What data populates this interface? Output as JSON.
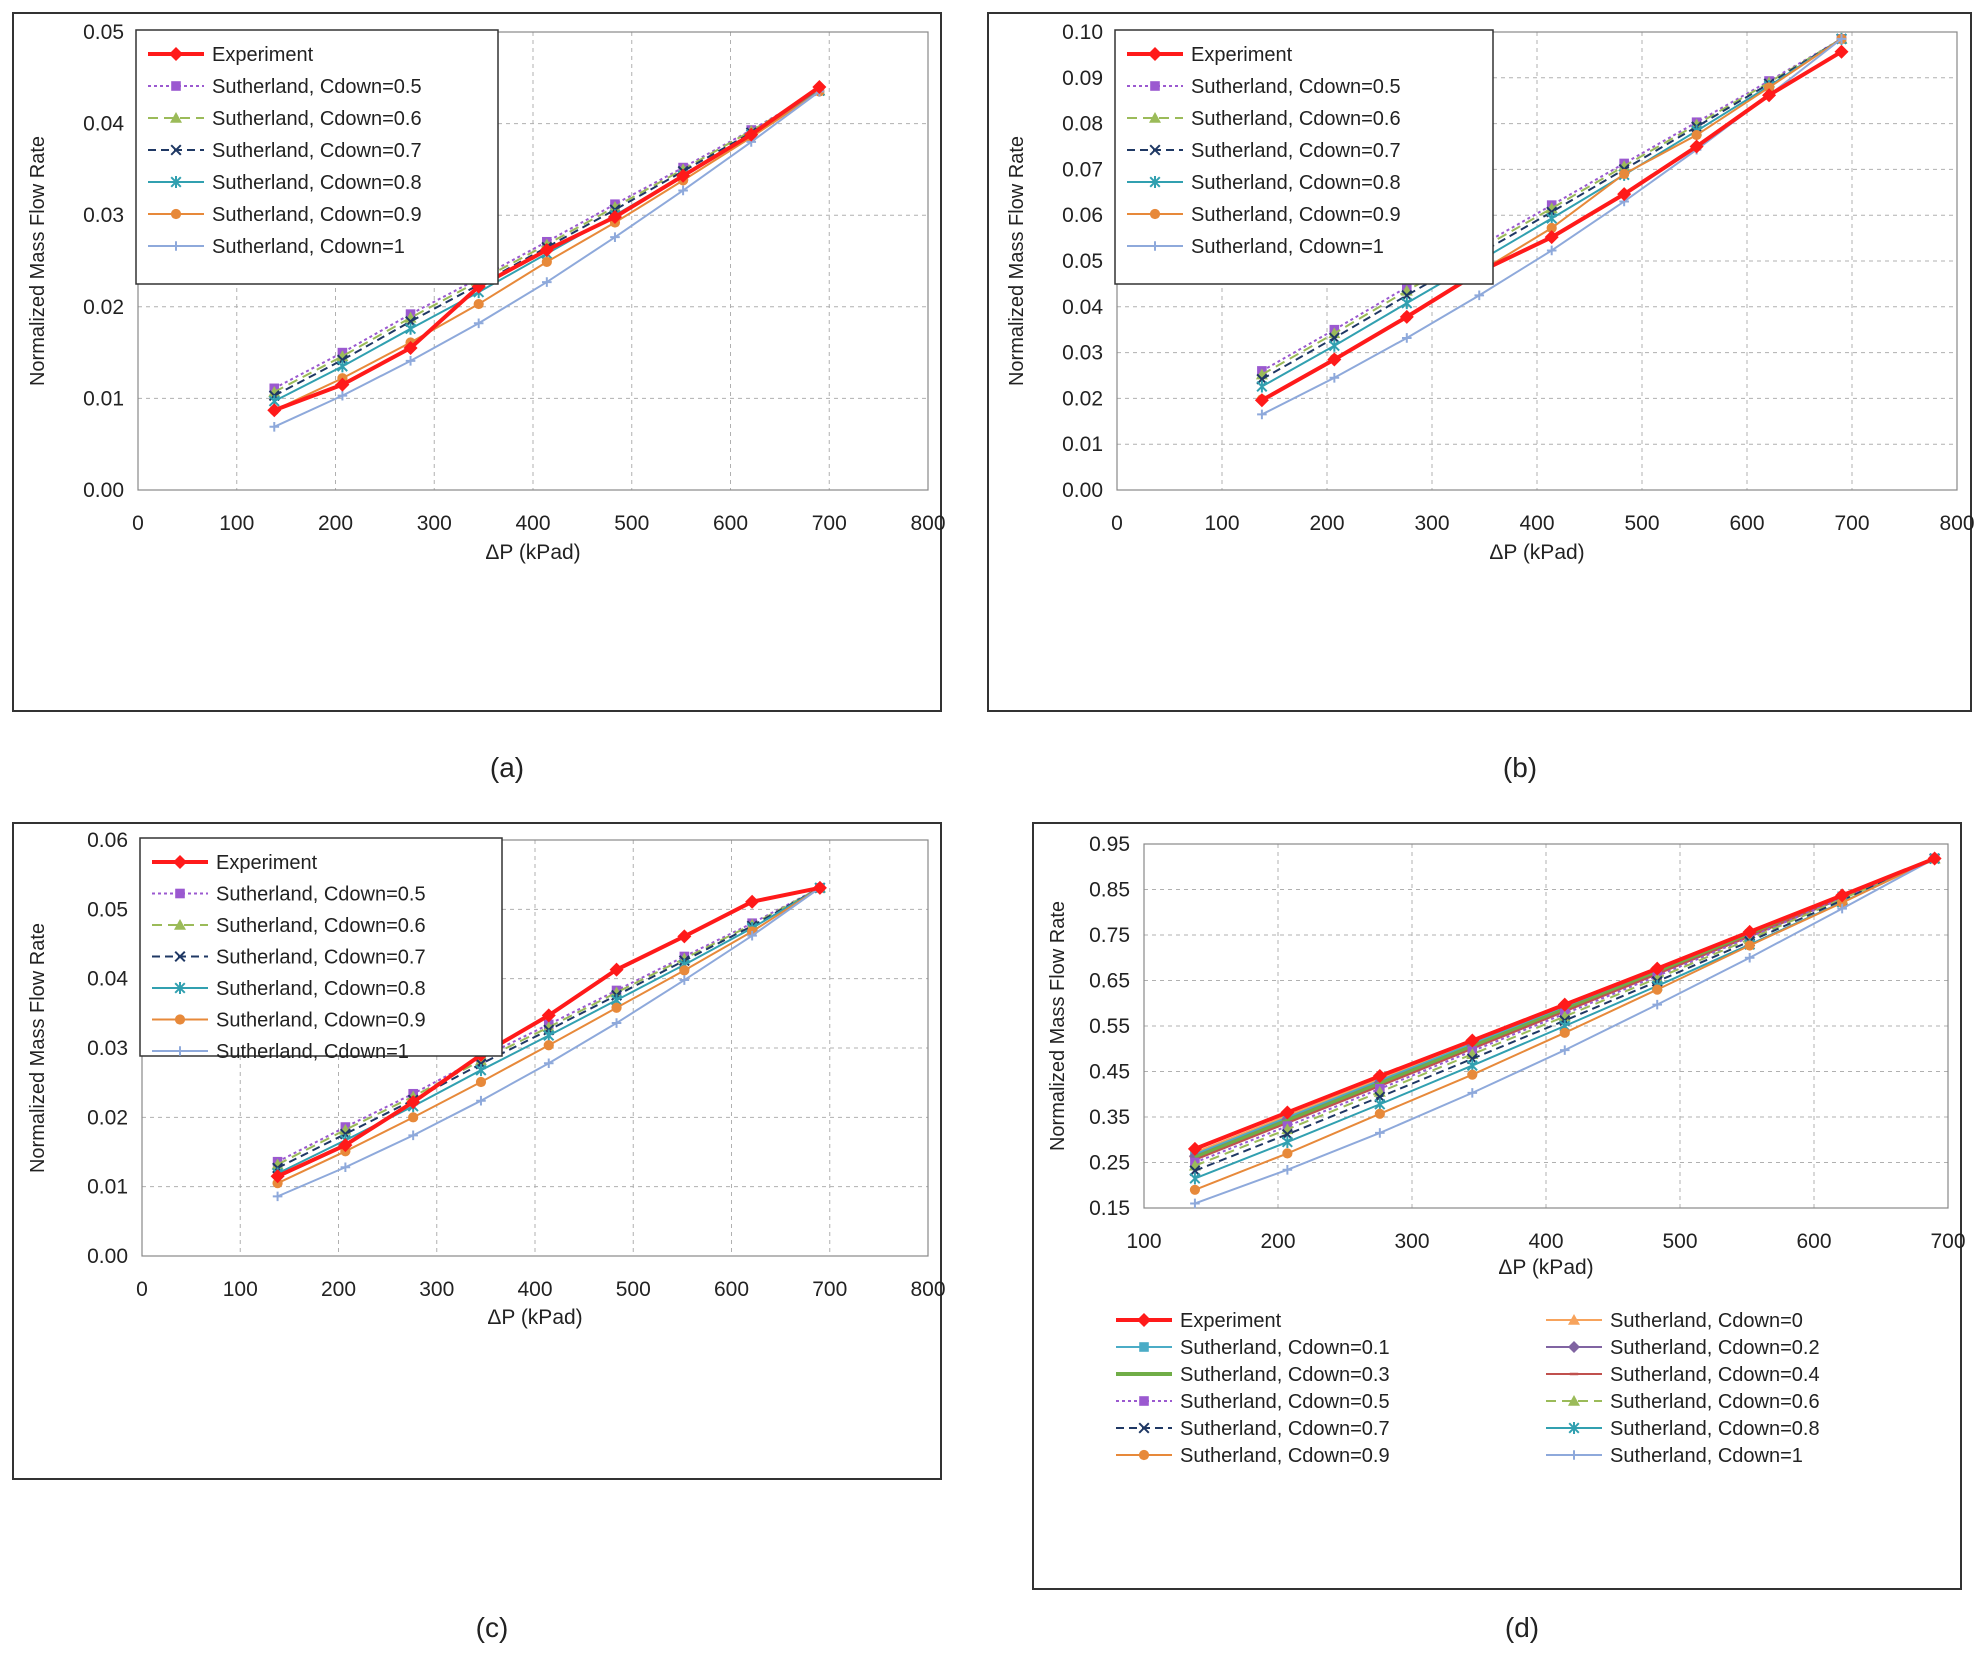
{
  "captions": [
    "(a)",
    "(b)",
    "(c)",
    "(d)"
  ],
  "styles": {
    "Experiment": {
      "color": "#ff1a1a",
      "dash": "",
      "marker": "diamond",
      "width": 4
    },
    "Cdown=0": {
      "color": "#f7a35c",
      "dash": "",
      "marker": "triangle",
      "width": 2
    },
    "Cdown=0.1": {
      "color": "#4bacc6",
      "dash": "",
      "marker": "square",
      "width": 2
    },
    "Cdown=0.2": {
      "color": "#8064a2",
      "dash": "",
      "marker": "diamond",
      "width": 2
    },
    "Cdown=0.3": {
      "color": "#70ad47",
      "dash": "",
      "marker": "none",
      "width": 4
    },
    "Cdown=0.4": {
      "color": "#c0504d",
      "dash": "",
      "marker": "dash",
      "width": 2
    },
    "Cdown=0.5": {
      "color": "#9b59d0",
      "dash": "3,3",
      "marker": "square",
      "width": 2
    },
    "Cdown=0.6": {
      "color": "#9bbb59",
      "dash": "10,6",
      "marker": "triangle",
      "width": 2
    },
    "Cdown=0.7": {
      "color": "#1f3864",
      "dash": "8,5",
      "marker": "x",
      "width": 2
    },
    "Cdown=0.8": {
      "color": "#31a0b0",
      "dash": "",
      "marker": "star",
      "width": 2
    },
    "Cdown=0.9": {
      "color": "#e7893a",
      "dash": "",
      "marker": "circle",
      "width": 2
    },
    "Cdown=1": {
      "color": "#8ea9db",
      "dash": "",
      "marker": "plus",
      "width": 2
    }
  },
  "chart_data": [
    {
      "type": "line",
      "xlabel": "ΔP (kPad)",
      "ylabel": "Normalized  Mass  Flow Rate",
      "xlim": [
        0,
        800
      ],
      "xticks": [
        0,
        100,
        200,
        300,
        400,
        500,
        600,
        700,
        800
      ],
      "ylim": [
        0,
        0.05
      ],
      "yticks": [
        0,
        0.01,
        0.02,
        0.03,
        0.04,
        0.05
      ],
      "ytick_labels": [
        "0.00",
        "0.01",
        "0.02",
        "0.03",
        "0.04",
        "0.05"
      ],
      "x": [
        138,
        207,
        276,
        345,
        414,
        483,
        552,
        621,
        690
      ],
      "legend": "top-left",
      "series": [
        {
          "name": "Experiment",
          "key": "Experiment",
          "values": [
            0.0087,
            0.0115,
            0.0155,
            0.0222,
            0.0262,
            0.0298,
            0.0343,
            0.0388,
            0.044
          ]
        },
        {
          "name": "Sutherland, Cdown=0.5",
          "key": "Cdown=0.5",
          "values": [
            0.0111,
            0.015,
            0.0192,
            0.0231,
            0.0271,
            0.0312,
            0.0352,
            0.0393,
            0.0436
          ]
        },
        {
          "name": "Sutherland, Cdown=0.6",
          "key": "Cdown=0.6",
          "values": [
            0.0107,
            0.0146,
            0.0188,
            0.0228,
            0.0268,
            0.0309,
            0.035,
            0.0392,
            0.0436
          ]
        },
        {
          "name": "Sutherland, Cdown=0.7",
          "key": "Cdown=0.7",
          "values": [
            0.0103,
            0.0142,
            0.0184,
            0.0224,
            0.0265,
            0.0306,
            0.0348,
            0.039,
            0.0436
          ]
        },
        {
          "name": "Sutherland, Cdown=0.8",
          "key": "Cdown=0.8",
          "values": [
            0.0097,
            0.0135,
            0.0176,
            0.0216,
            0.0258,
            0.03,
            0.0343,
            0.0388,
            0.0436
          ]
        },
        {
          "name": "Sutherland, Cdown=0.9",
          "key": "Cdown=0.9",
          "values": [
            0.0087,
            0.0122,
            0.0161,
            0.0203,
            0.0249,
            0.0292,
            0.0338,
            0.0385,
            0.0435
          ]
        },
        {
          "name": "Sutherland, Cdown=1",
          "key": "Cdown=1",
          "values": [
            0.0069,
            0.0103,
            0.0141,
            0.0182,
            0.0227,
            0.0276,
            0.0327,
            0.038,
            0.0435
          ]
        }
      ]
    },
    {
      "type": "line",
      "xlabel": "ΔP (kPad)",
      "ylabel": "Normalized  Mass  Flow Rate",
      "xlim": [
        0,
        800
      ],
      "xticks": [
        0,
        100,
        200,
        300,
        400,
        500,
        600,
        700,
        800
      ],
      "ylim": [
        0,
        0.1
      ],
      "yticks": [
        0,
        0.01,
        0.02,
        0.03,
        0.04,
        0.05,
        0.06,
        0.07,
        0.08,
        0.09,
        0.1
      ],
      "ytick_labels": [
        "0.00",
        "0.01",
        "0.02",
        "0.03",
        "0.04",
        "0.05",
        "0.06",
        "0.07",
        "0.08",
        "0.09",
        "0.10"
      ],
      "x": [
        138,
        207,
        276,
        345,
        414,
        483,
        552,
        621,
        690
      ],
      "legend": "top-left",
      "series": [
        {
          "name": "Experiment",
          "key": "Experiment",
          "values": [
            0.0196,
            0.0285,
            0.0378,
            0.0476,
            0.0552,
            0.0646,
            0.075,
            0.0862,
            0.0957
          ]
        },
        {
          "name": "Sutherland, Cdown=0.5",
          "key": "Cdown=0.5",
          "values": [
            0.026,
            0.035,
            0.0443,
            0.0532,
            0.0622,
            0.0713,
            0.0803,
            0.0893,
            0.0985
          ]
        },
        {
          "name": "Sutherland, Cdown=0.6",
          "key": "Cdown=0.6",
          "values": [
            0.0252,
            0.0342,
            0.0435,
            0.0525,
            0.0615,
            0.0707,
            0.0798,
            0.089,
            0.0985
          ]
        },
        {
          "name": "Sutherland, Cdown=0.7",
          "key": "Cdown=0.7",
          "values": [
            0.0242,
            0.0332,
            0.0425,
            0.0516,
            0.0607,
            0.07,
            0.0793,
            0.0887,
            0.0985
          ]
        },
        {
          "name": "Sutherland, Cdown=0.8",
          "key": "Cdown=0.8",
          "values": [
            0.0226,
            0.0315,
            0.0408,
            0.05,
            0.0593,
            0.0688,
            0.0784,
            0.0882,
            0.0985
          ]
        },
        {
          "name": "Sutherland, Cdown=0.9",
          "key": "Cdown=0.9",
          "values": [
            0.0198,
            0.0286,
            0.0378,
            0.0476,
            0.0572,
            0.069,
            0.0775,
            0.0879,
            0.0985
          ]
        },
        {
          "name": "Sutherland, Cdown=1",
          "key": "Cdown=1",
          "values": [
            0.0165,
            0.0245,
            0.0332,
            0.0425,
            0.0523,
            0.063,
            0.0743,
            0.0862,
            0.0985
          ]
        }
      ]
    },
    {
      "type": "line",
      "xlabel": "ΔP (kPad)",
      "ylabel": "Normalized  Mass  Flow Rate",
      "xlim": [
        0,
        800
      ],
      "xticks": [
        0,
        100,
        200,
        300,
        400,
        500,
        600,
        700,
        800
      ],
      "ylim": [
        0,
        0.06
      ],
      "yticks": [
        0,
        0.01,
        0.02,
        0.03,
        0.04,
        0.05,
        0.06
      ],
      "ytick_labels": [
        "0.00",
        "0.01",
        "0.02",
        "0.03",
        "0.04",
        "0.05",
        "0.06"
      ],
      "x": [
        138,
        207,
        276,
        345,
        414,
        483,
        552,
        621,
        690
      ],
      "legend": "top-left",
      "series": [
        {
          "name": "Experiment",
          "key": "Experiment",
          "values": [
            0.0115,
            0.016,
            0.0222,
            0.029,
            0.0347,
            0.0413,
            0.0461,
            0.0511,
            0.0531
          ]
        },
        {
          "name": "Sutherland, Cdown=0.5",
          "key": "Cdown=0.5",
          "values": [
            0.0136,
            0.0186,
            0.0234,
            0.0286,
            0.0334,
            0.0383,
            0.0432,
            0.048,
            0.0531
          ]
        },
        {
          "name": "Sutherland, Cdown=0.6",
          "key": "Cdown=0.6",
          "values": [
            0.0132,
            0.0182,
            0.023,
            0.0282,
            0.033,
            0.038,
            0.0429,
            0.0478,
            0.0531
          ]
        },
        {
          "name": "Sutherland, Cdown=0.7",
          "key": "Cdown=0.7",
          "values": [
            0.0127,
            0.0176,
            0.0225,
            0.0277,
            0.0326,
            0.0376,
            0.0426,
            0.0476,
            0.0531
          ]
        },
        {
          "name": "Sutherland, Cdown=0.8",
          "key": "Cdown=0.8",
          "values": [
            0.0119,
            0.0167,
            0.0216,
            0.0268,
            0.0318,
            0.0369,
            0.042,
            0.0473,
            0.0531
          ]
        },
        {
          "name": "Sutherland, Cdown=0.9",
          "key": "Cdown=0.9",
          "values": [
            0.0105,
            0.0151,
            0.02,
            0.0251,
            0.0304,
            0.0358,
            0.0412,
            0.0468,
            0.0531
          ]
        },
        {
          "name": "Sutherland, Cdown=1",
          "key": "Cdown=1",
          "values": [
            0.0086,
            0.0128,
            0.0174,
            0.0224,
            0.0278,
            0.0336,
            0.0398,
            0.0462,
            0.0531
          ]
        }
      ]
    },
    {
      "type": "line",
      "xlabel": "ΔP (kPad)",
      "ylabel": "Normalized  Mass  Flow Rate",
      "xlim": [
        100,
        700
      ],
      "xticks": [
        100,
        200,
        300,
        400,
        500,
        600,
        700
      ],
      "ylim": [
        0.15,
        0.95
      ],
      "yticks": [
        0.15,
        0.25,
        0.35,
        0.45,
        0.55,
        0.65,
        0.75,
        0.85,
        0.95
      ],
      "ytick_labels": [
        "0.15",
        "0.25",
        "0.35",
        "0.45",
        "0.55",
        "0.65",
        "0.75",
        "0.85",
        "0.95"
      ],
      "x": [
        138,
        207,
        276,
        345,
        414,
        483,
        552,
        621,
        690
      ],
      "legend": "bottom",
      "series": [
        {
          "name": "Experiment",
          "key": "Experiment",
          "values": [
            0.28,
            0.36,
            0.44,
            0.518,
            0.597,
            0.676,
            0.757,
            0.837,
            0.918
          ]
        },
        {
          "name": "Sutherland, Cdown=0",
          "key": "Cdown=0",
          "values": [
            0.272,
            0.353,
            0.434,
            0.514,
            0.594,
            0.673,
            0.754,
            0.836,
            0.918
          ]
        },
        {
          "name": "Sutherland, Cdown=0.1",
          "key": "Cdown=0.1",
          "values": [
            0.268,
            0.349,
            0.43,
            0.511,
            0.591,
            0.671,
            0.752,
            0.835,
            0.918
          ]
        },
        {
          "name": "Sutherland, Cdown=0.2",
          "key": "Cdown=0.2",
          "values": [
            0.264,
            0.345,
            0.426,
            0.507,
            0.588,
            0.669,
            0.751,
            0.834,
            0.918
          ]
        },
        {
          "name": "Sutherland, Cdown=0.3",
          "key": "Cdown=0.3",
          "values": [
            0.261,
            0.342,
            0.423,
            0.505,
            0.586,
            0.667,
            0.749,
            0.833,
            0.918
          ]
        },
        {
          "name": "Sutherland, Cdown=0.4",
          "key": "Cdown=0.4",
          "values": [
            0.256,
            0.337,
            0.418,
            0.5,
            0.582,
            0.664,
            0.747,
            0.832,
            0.918
          ]
        },
        {
          "name": "Sutherland, Cdown=0.5",
          "key": "Cdown=0.5",
          "values": [
            0.25,
            0.33,
            0.412,
            0.495,
            0.577,
            0.66,
            0.745,
            0.831,
            0.918
          ]
        },
        {
          "name": "Sutherland, Cdown=0.6",
          "key": "Cdown=0.6",
          "values": [
            0.243,
            0.323,
            0.405,
            0.488,
            0.571,
            0.655,
            0.741,
            0.829,
            0.918
          ]
        },
        {
          "name": "Sutherland, Cdown=0.7",
          "key": "Cdown=0.7",
          "values": [
            0.232,
            0.312,
            0.394,
            0.478,
            0.562,
            0.648,
            0.736,
            0.826,
            0.918
          ]
        },
        {
          "name": "Sutherland, Cdown=0.8",
          "key": "Cdown=0.8",
          "values": [
            0.215,
            0.295,
            0.378,
            0.463,
            0.55,
            0.638,
            0.729,
            0.822,
            0.918
          ]
        },
        {
          "name": "Sutherland, Cdown=0.9",
          "key": "Cdown=0.9",
          "values": [
            0.19,
            0.27,
            0.357,
            0.443,
            0.535,
            0.63,
            0.727,
            0.821,
            0.918
          ]
        },
        {
          "name": "Sutherland, Cdown=1",
          "key": "Cdown=1",
          "values": [
            0.16,
            0.234,
            0.315,
            0.403,
            0.497,
            0.597,
            0.7,
            0.808,
            0.918
          ]
        }
      ]
    }
  ]
}
